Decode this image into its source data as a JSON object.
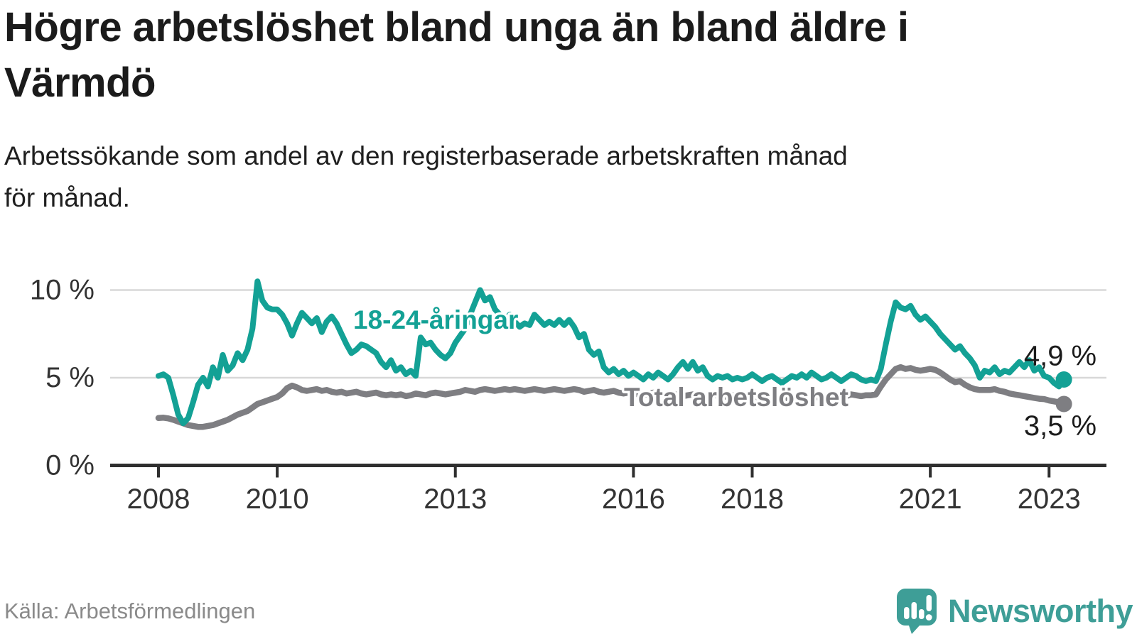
{
  "header": {
    "title_lines": [
      "Högre arbetslöshet bland unga än bland äldre i",
      "Värmdö"
    ],
    "subtitle_lines": [
      "Arbetssökande som andel av den registerbaserade arbetskraften månad",
      "för månad."
    ]
  },
  "footer": {
    "source": "Källa: Arbetsförmedlingen",
    "brand": "Newsworthy"
  },
  "colors": {
    "youth_line": "#13a195",
    "total_line": "#7e7e82",
    "axis": "#2f2f2f",
    "grid": "#d8d8d8",
    "tick_text": "#333333",
    "value_text": "#1b1b1b",
    "brand": "#3e9e97"
  },
  "chart_data": {
    "type": "line",
    "title": "Högre arbetslöshet bland unga än bland äldre i Värmdö",
    "xlabel": "",
    "ylabel": "",
    "x_start_year": 2008,
    "x_step": "month",
    "ylim": [
      0,
      11
    ],
    "grid": "horizontal",
    "y_ticks": [
      {
        "value": 0,
        "label": "0 %"
      },
      {
        "value": 5,
        "label": "5 %"
      },
      {
        "value": 10,
        "label": "10 %"
      }
    ],
    "x_ticks": [
      {
        "year": 2008,
        "label": "2008"
      },
      {
        "year": 2010,
        "label": "2010"
      },
      {
        "year": 2013,
        "label": "2013"
      },
      {
        "year": 2016,
        "label": "2016"
      },
      {
        "year": 2018,
        "label": "2018"
      },
      {
        "year": 2021,
        "label": "2021"
      },
      {
        "year": 2023,
        "label": "2023"
      }
    ],
    "series": [
      {
        "name": "18-24-åringar",
        "color": "#13a195",
        "end_label": "4,9 %",
        "end_value": 4.9,
        "values": [
          5.1,
          5.2,
          5.0,
          4.0,
          2.9,
          2.4,
          2.7,
          3.6,
          4.6,
          5.0,
          4.5,
          5.6,
          5.0,
          6.3,
          5.4,
          5.7,
          6.4,
          6.0,
          6.6,
          7.8,
          10.5,
          9.4,
          9.0,
          8.9,
          8.9,
          8.6,
          8.1,
          7.4,
          8.1,
          8.7,
          8.4,
          8.1,
          8.4,
          7.6,
          8.2,
          8.5,
          8.1,
          7.5,
          6.9,
          6.4,
          6.6,
          6.9,
          6.8,
          6.6,
          6.4,
          5.9,
          5.6,
          6.0,
          5.4,
          5.6,
          5.2,
          5.4,
          5.1,
          7.3,
          6.9,
          7.0,
          6.6,
          6.3,
          6.1,
          6.4,
          7.0,
          7.4,
          7.8,
          8.6,
          9.3,
          10.0,
          9.4,
          9.6,
          8.9,
          8.6,
          8.3,
          8.6,
          8.2,
          7.9,
          8.1,
          8.0,
          8.6,
          8.3,
          8.0,
          8.2,
          8.0,
          8.3,
          8.0,
          8.3,
          7.9,
          7.3,
          7.5,
          6.6,
          6.3,
          6.5,
          5.6,
          5.3,
          5.5,
          5.2,
          5.4,
          5.1,
          5.3,
          5.1,
          4.9,
          5.2,
          5.0,
          5.3,
          5.1,
          4.9,
          5.2,
          5.6,
          5.9,
          5.5,
          5.9,
          5.4,
          5.6,
          5.1,
          4.9,
          5.1,
          5.0,
          5.1,
          4.9,
          5.0,
          4.9,
          5.0,
          5.2,
          5.0,
          4.8,
          5.0,
          5.1,
          4.9,
          4.7,
          4.9,
          5.1,
          5.0,
          5.2,
          5.0,
          5.3,
          5.1,
          4.9,
          5.0,
          5.2,
          5.0,
          4.8,
          5.0,
          5.2,
          5.1,
          4.9,
          4.8,
          4.9,
          4.8,
          5.5,
          6.9,
          8.2,
          9.3,
          9.0,
          8.9,
          9.1,
          8.6,
          8.3,
          8.5,
          8.2,
          7.9,
          7.5,
          7.2,
          6.9,
          6.6,
          6.8,
          6.4,
          6.1,
          5.7,
          5.0,
          5.4,
          5.3,
          5.6,
          5.2,
          5.4,
          5.3,
          5.6,
          5.9,
          5.6,
          6.0,
          5.4,
          5.6,
          5.1,
          5.0,
          4.7,
          4.5,
          4.9
        ]
      },
      {
        "name": "Total arbetslöshet",
        "color": "#7e7e82",
        "end_label": "3,5 %",
        "end_value": 3.5,
        "values": [
          2.7,
          2.72,
          2.68,
          2.6,
          2.5,
          2.4,
          2.3,
          2.25,
          2.2,
          2.2,
          2.25,
          2.3,
          2.4,
          2.5,
          2.6,
          2.75,
          2.9,
          3.0,
          3.1,
          3.3,
          3.5,
          3.6,
          3.7,
          3.8,
          3.9,
          4.1,
          4.4,
          4.55,
          4.45,
          4.3,
          4.25,
          4.3,
          4.35,
          4.25,
          4.3,
          4.2,
          4.15,
          4.2,
          4.1,
          4.15,
          4.2,
          4.1,
          4.05,
          4.1,
          4.15,
          4.05,
          4.0,
          4.05,
          4.0,
          4.05,
          3.95,
          4.0,
          4.1,
          4.05,
          4.0,
          4.1,
          4.15,
          4.1,
          4.05,
          4.1,
          4.15,
          4.2,
          4.3,
          4.25,
          4.2,
          4.3,
          4.35,
          4.3,
          4.25,
          4.3,
          4.35,
          4.3,
          4.35,
          4.3,
          4.25,
          4.3,
          4.35,
          4.3,
          4.25,
          4.3,
          4.35,
          4.3,
          4.25,
          4.3,
          4.35,
          4.3,
          4.2,
          4.25,
          4.3,
          4.2,
          4.15,
          4.2,
          4.25,
          4.15,
          4.1,
          4.15,
          4.1,
          4.05,
          4.0,
          4.1,
          4.15,
          4.05,
          4.0,
          4.05,
          4.1,
          4.0,
          3.95,
          4.0,
          4.05,
          4.0,
          3.9,
          3.95,
          4.05,
          4.0,
          3.9,
          3.95,
          4.0,
          3.9,
          3.85,
          3.9,
          3.95,
          3.9,
          3.8,
          3.85,
          3.9,
          3.85,
          3.8,
          3.85,
          3.9,
          3.8,
          3.85,
          3.9,
          3.95,
          3.9,
          3.85,
          3.9,
          4.0,
          3.95,
          3.9,
          3.95,
          4.05,
          4.0,
          3.95,
          4.0,
          4.0,
          4.05,
          4.5,
          4.9,
          5.2,
          5.5,
          5.6,
          5.5,
          5.55,
          5.45,
          5.4,
          5.45,
          5.5,
          5.45,
          5.3,
          5.1,
          4.9,
          4.75,
          4.8,
          4.6,
          4.45,
          4.35,
          4.3,
          4.3,
          4.3,
          4.35,
          4.25,
          4.2,
          4.1,
          4.05,
          4.0,
          3.95,
          3.9,
          3.85,
          3.8,
          3.78,
          3.7,
          3.65,
          3.6,
          3.5
        ]
      }
    ]
  }
}
